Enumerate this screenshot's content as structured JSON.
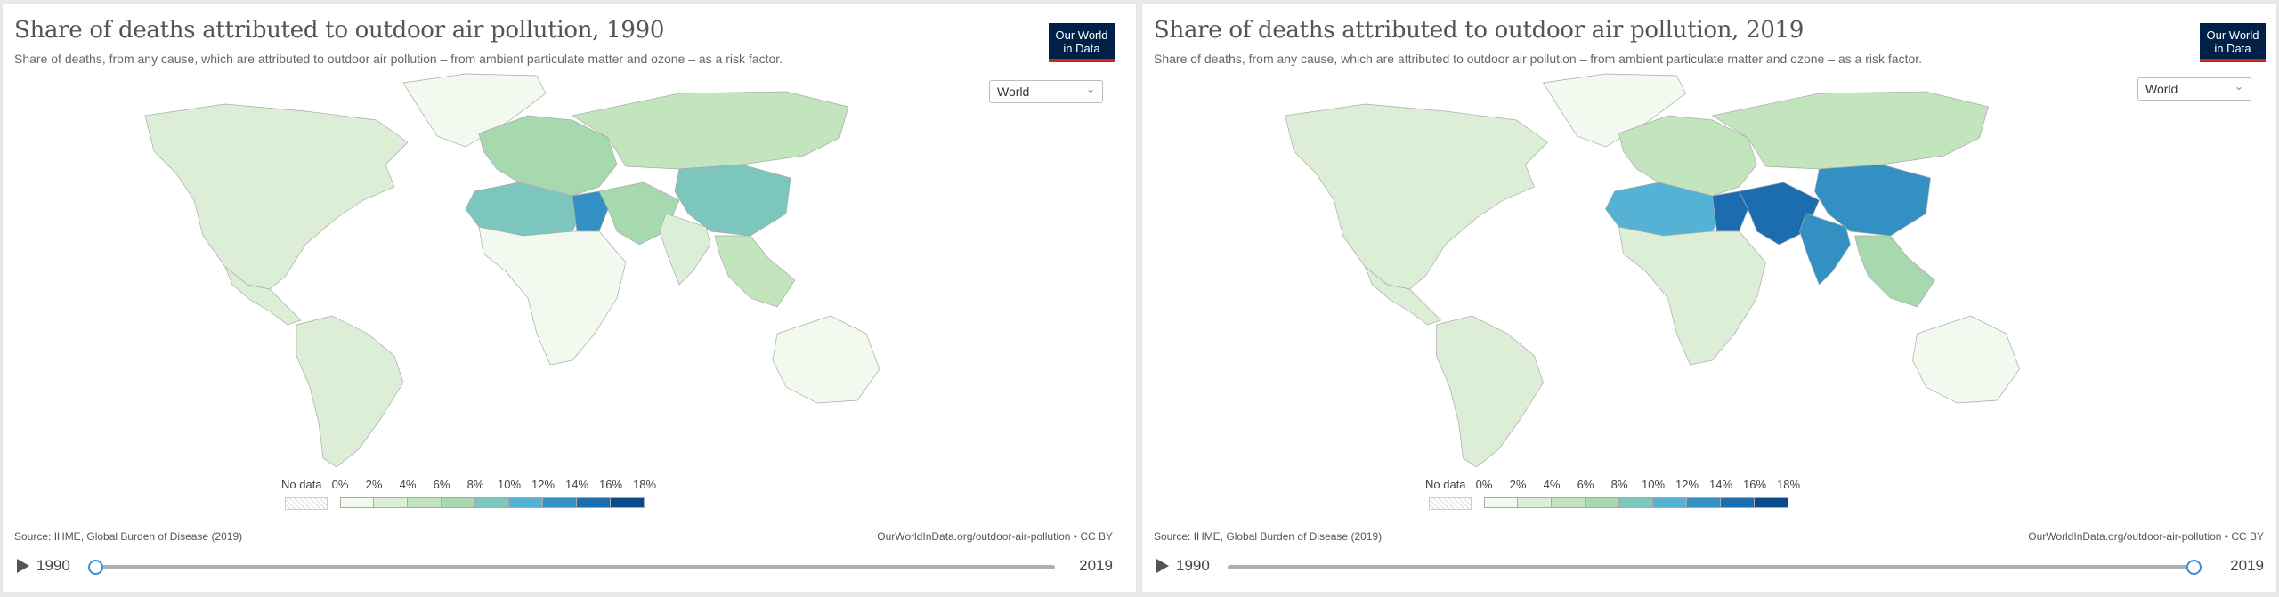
{
  "panels": [
    {
      "title": "Share of deaths attributed to outdoor air pollution, 1990",
      "subtitle": "Share of deaths, from any cause, which are attributed to outdoor air pollution – from ambient particulate matter and ozone – as a risk factor.",
      "logo": [
        "Our World",
        "in Data"
      ],
      "region_select": "World",
      "source": "Source: IHME, Global Burden of Disease (2019)",
      "url": "OurWorldInData.org/outdoor-air-pollution • CC BY",
      "timeline": {
        "start": "1990",
        "end": "2019",
        "selected": "1990",
        "progress": 0
      }
    },
    {
      "title": "Share of deaths attributed to outdoor air pollution, 2019",
      "subtitle": "Share of deaths, from any cause, which are attributed to outdoor air pollution – from ambient particulate matter and ozone – as a risk factor.",
      "logo": [
        "Our World",
        "in Data"
      ],
      "region_select": "World",
      "source": "Source: IHME, Global Burden of Disease (2019)",
      "url": "OurWorldInData.org/outdoor-air-pollution • CC BY",
      "timeline": {
        "start": "1990",
        "end": "2019",
        "selected": "2019",
        "progress": 1
      }
    }
  ],
  "legend": {
    "no_data_label": "No data",
    "ticks": [
      "0%",
      "2%",
      "4%",
      "6%",
      "8%",
      "10%",
      "12%",
      "14%",
      "16%",
      "18%"
    ],
    "colors": [
      "#f2f9ef",
      "#dcefd6",
      "#c3e5bd",
      "#a6d9ad",
      "#7cc6bd",
      "#56b2d4",
      "#3390c3",
      "#1c6db0",
      "#0b4a8c"
    ]
  },
  "map_colors": {
    "panel_1990": {
      "north_america": "#dcefd6",
      "greenland": "#f2f9ef",
      "south_america": "#dcefd6",
      "africa": "#f2f9ef",
      "north_africa": "#7cc6bd",
      "egypt": "#3390c3",
      "europe": "#a6d9ad",
      "russia": "#c3e5bd",
      "middle_east": "#a6d9ad",
      "china": "#7cc6bd",
      "india": "#dcefd6",
      "southeast_asia": "#c3e5bd",
      "australia": "#f2f9ef"
    },
    "panel_2019": {
      "north_america": "#dcefd6",
      "greenland": "#f2f9ef",
      "south_america": "#dcefd6",
      "africa": "#dcefd6",
      "north_africa": "#56b2d4",
      "egypt": "#1c6db0",
      "europe": "#c3e5bd",
      "russia": "#c3e5bd",
      "middle_east": "#1c6db0",
      "china": "#3390c3",
      "india": "#3390c3",
      "southeast_asia": "#a6d9ad",
      "australia": "#f2f9ef"
    }
  }
}
